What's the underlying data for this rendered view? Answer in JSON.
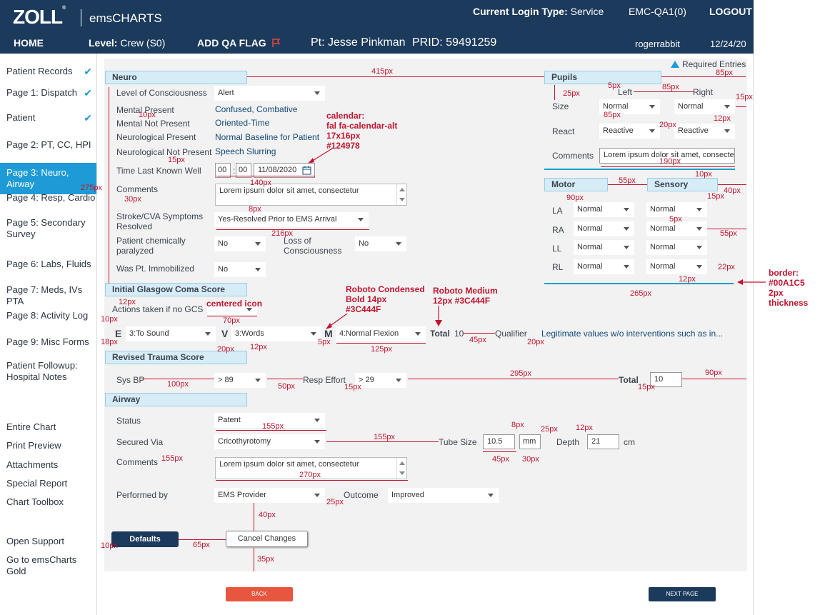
{
  "header": {
    "brand": "ZOLL",
    "product": "emsCHARTS",
    "login_type_label": "Current Login Type:",
    "login_type": "Service",
    "account": "EMC-QA1(0)",
    "logout": "LOGOUT",
    "home": "HOME",
    "level_label": "Level:",
    "level": "Crew (S0)",
    "add_qa_flag": "ADD QA FLAG",
    "patient_label": "Pt:",
    "patient_name": "Jesse Pinkman",
    "prid_label": "PRID:",
    "prid": "59491259",
    "user": "rogerrabbit",
    "date": "12/24/20"
  },
  "sidebar": {
    "items": [
      {
        "label": "Patient Records",
        "checked": true
      },
      {
        "label": "Page 1:  Dispatch",
        "checked": true
      },
      {
        "label": "Patient",
        "checked": true
      },
      {
        "label": "Page 2: PT, CC, HPI"
      },
      {
        "label": "Page 3: Neuro, Airway",
        "active": true
      },
      {
        "label": "Page 4: Resp, Cardio"
      },
      {
        "label": "Page 5: Secondary Survey"
      },
      {
        "label": "Page 6: Labs, Fluids"
      },
      {
        "label": "Page 7: Meds, IVs PTA"
      },
      {
        "label": "Page 8: Activity Log"
      },
      {
        "label": "Page 9: Misc Forms"
      },
      {
        "label": "Patient Followup:",
        "sub": "Hospital Notes"
      }
    ],
    "tools": [
      "Entire Chart",
      "Print Preview",
      "Attachments",
      "Special Report",
      "Chart Toolbox"
    ],
    "support": [
      "Open Support",
      "Go to emsCharts Gold"
    ]
  },
  "required_entries": "Required Entries",
  "neuro": {
    "title": "Neuro",
    "loc_label": "Level of Consciousness",
    "loc_value": "Alert",
    "mental_present_label": "Mental Present",
    "mental_present_value": "Confused, Combative",
    "mental_not_present_label": "Mental Not Present",
    "mental_not_present_value": "Oriented-Time",
    "neuro_present_label": "Neurological Present",
    "neuro_present_value": "Normal Baseline for Patient",
    "neuro_not_present_label": "Neurological Not Present",
    "neuro_not_present_value": "Speech Slurring",
    "tlkw_label": "Time Last Known Well",
    "tlkw_hour": "00",
    "tlkw_min": "00",
    "tlkw_date": "11/08/2020",
    "comments_label": "Comments",
    "comments_value": "Lorem ipsum dolor sit amet, consectetur",
    "stroke_label": "Stroke/CVA Symptoms Resolved",
    "stroke_value": "Yes-Resolved Prior to EMS Arrival",
    "paralyzed_label": "Patient chemically paralyzed",
    "paralyzed_value": "No",
    "loss_label": "Loss of Consciousness",
    "loss_value": "No",
    "immobilized_label": "Was Pt. Immobilized",
    "immobilized_value": "No"
  },
  "pupils": {
    "title": "Pupils",
    "left_label": "Left",
    "right_label": "Right",
    "size_label": "Size",
    "size_left": "Normal",
    "size_right": "Normal",
    "react_label": "React",
    "react_left": "Reactive",
    "react_right": "Reactive",
    "comments_label": "Comments",
    "comments_value": "Lorem ipsum dolor sit amet, consectetur"
  },
  "motor_sensory": {
    "motor_title": "Motor",
    "sensory_title": "Sensory",
    "rows": [
      {
        "label": "LA",
        "motor": "Normal",
        "sensory": "Normal"
      },
      {
        "label": "RA",
        "motor": "Normal",
        "sensory": "Normal"
      },
      {
        "label": "LL",
        "motor": "Normal",
        "sensory": "Normal"
      },
      {
        "label": "RL",
        "motor": "Normal",
        "sensory": "Normal"
      }
    ]
  },
  "gcs": {
    "title": "Initial Glasgow Coma Score",
    "actions_label": "Actions taken if no GCS",
    "e_letter": "E",
    "e_value": "3:To Sound",
    "v_letter": "V",
    "v_value": "3:Words",
    "m_letter": "M",
    "m_value": "4:Normal Flexion",
    "total_label": "Total",
    "total_value": "10",
    "qualifier_label": "Qualifier",
    "qualifier_value": "Legitimate values w/o interventions such as in..."
  },
  "rts": {
    "title": "Revised Trauma Score",
    "sysbp_label": "Sys BP",
    "sysbp_value": "> 89",
    "resp_label": "Resp Effort",
    "resp_value": "> 29",
    "total_label": "Total",
    "total_value": "10"
  },
  "airway": {
    "title": "Airway",
    "status_label": "Status",
    "status_value": "Patent",
    "secured_label": "Secured Via",
    "secured_value": "Cricothyrotomy",
    "tube_label": "Tube Size",
    "tube_value": "10.5",
    "tube_unit": "mm",
    "depth_label": "Depth",
    "depth_value": "21",
    "depth_unit": "cm",
    "comments_label": "Comments",
    "comments_value": "Lorem ipsum dolor sit amet, consectetur",
    "performed_label": "Performed by",
    "performed_value": "EMS Provider",
    "outcome_label": "Outcome",
    "outcome_value": "Improved"
  },
  "buttons": {
    "defaults": "Defaults",
    "cancel": "Cancel Changes",
    "back": "BACK",
    "next": "NEXT PAGE"
  },
  "annotations": {
    "m415": "415px",
    "m85a": "85px",
    "m25": "25px",
    "m5": "5px",
    "m85b": "85px",
    "m15a": "15px",
    "m10a": "10px",
    "m15b": "15px",
    "m85c": "85px",
    "m12a": "12px",
    "m20a": "20px",
    "m190": "190px",
    "m10b": "10px",
    "m275": "275px",
    "m140": "140px",
    "m30a": "30px",
    "m8a": "8px",
    "m216": "216px",
    "m55a": "55px",
    "m90a": "90px",
    "m15c": "15px",
    "m40a": "40px",
    "m5b": "5px",
    "m55b": "55px",
    "m22": "22px",
    "m12b": "12px",
    "m265": "265px",
    "m12c": "12px",
    "m10c": "10px",
    "m70": "70px",
    "m18": "18px",
    "m20b": "20px",
    "m12d": "12px",
    "m5c": "5px",
    "m125": "125px",
    "m45a": "45px",
    "m20c": "20px",
    "m100": "100px",
    "m50": "50px",
    "m15d": "15px",
    "m295": "295px",
    "m15e": "15px",
    "m90b": "90px",
    "m155a": "155px",
    "m155b": "155px",
    "m155c": "155px",
    "m8b": "8px",
    "m25b": "25px",
    "m12e": "12px",
    "m45b": "45px",
    "m30b": "30px",
    "m270": "270px",
    "m25c": "25px",
    "m40b": "40px",
    "m10d": "10px",
    "m65": "65px",
    "m35": "35px",
    "calendar_note": [
      "calendar:",
      "fal fa-calendar-alt",
      "17x16px",
      "#124978"
    ],
    "centered_icon": "centered icon",
    "roboto_condensed": [
      "Roboto Condensed",
      "Bold 14px",
      "#3C444F"
    ],
    "roboto_medium": [
      "Roboto Medium",
      "12px #3C444F"
    ],
    "border_note": [
      "border:",
      "#00A1C5",
      "2px thickness"
    ]
  }
}
